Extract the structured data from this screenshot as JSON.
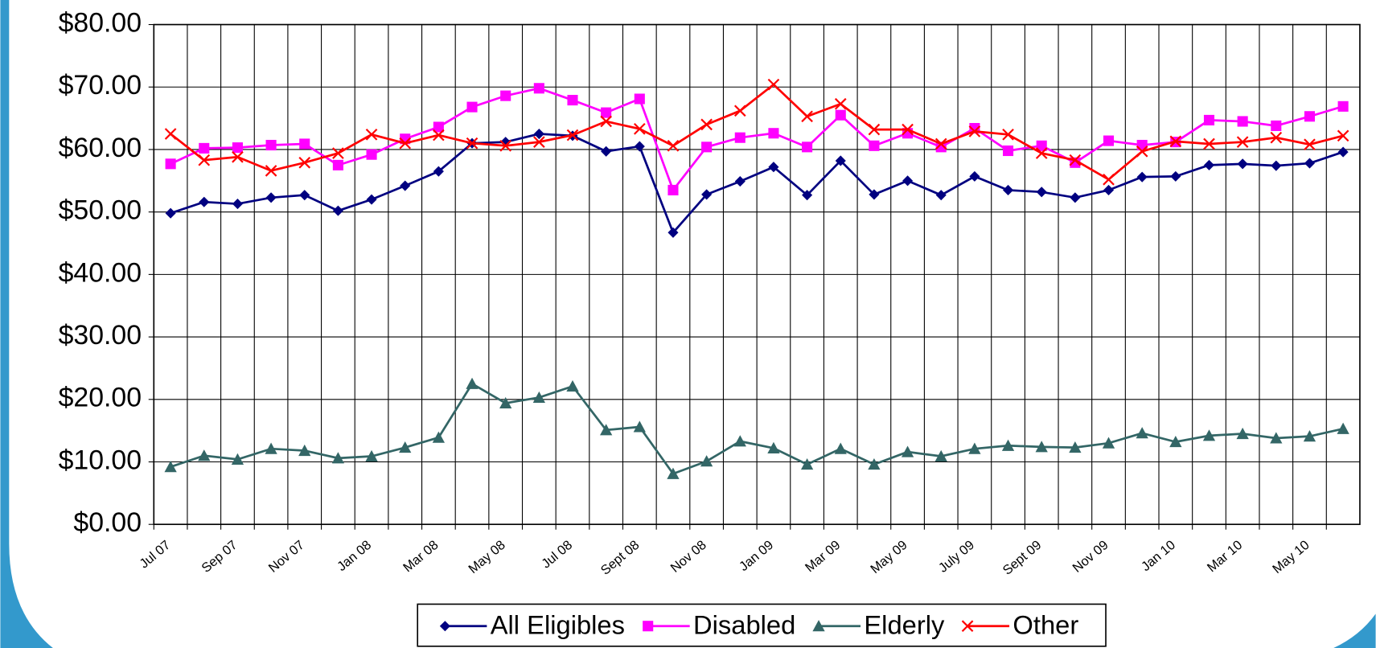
{
  "chart_data": {
    "type": "line",
    "categories": [
      "Jul 07",
      null,
      "Sep 07",
      null,
      "Nov 07",
      null,
      "Jan 08",
      null,
      "Mar 08",
      null,
      "May 08",
      null,
      "Jul 08",
      null,
      "Sept 08",
      null,
      "Nov 08",
      null,
      "Jan 09",
      null,
      "Mar 09",
      null,
      "May 09",
      null,
      "July 09",
      null,
      "Sept 09",
      null,
      "Nov 09",
      null,
      "Jan 10",
      null,
      "Mar 10",
      null,
      "May 10",
      null
    ],
    "series": [
      {
        "name": "All Eligibles",
        "color": "#000080",
        "marker": "diamond",
        "values": [
          49.8,
          51.6,
          51.3,
          52.3,
          52.7,
          50.2,
          52.0,
          54.2,
          56.5,
          61.0,
          61.2,
          62.5,
          62.2,
          59.7,
          60.5,
          46.7,
          52.8,
          54.9,
          57.2,
          52.7,
          58.2,
          52.8,
          55.0,
          52.7,
          55.7,
          53.5,
          53.2,
          52.3,
          53.5,
          55.6,
          55.7,
          57.5,
          57.7,
          57.4,
          57.8,
          59.6
        ]
      },
      {
        "name": "Disabled",
        "color": "#ff00ff",
        "marker": "square",
        "values": [
          57.7,
          60.2,
          60.3,
          60.7,
          60.9,
          57.5,
          59.2,
          61.7,
          63.6,
          66.8,
          68.6,
          69.8,
          67.9,
          65.9,
          68.1,
          53.5,
          60.4,
          61.9,
          62.6,
          60.4,
          65.5,
          60.6,
          62.6,
          60.4,
          63.4,
          59.8,
          60.6,
          57.9,
          61.4,
          60.7,
          61.2,
          64.7,
          64.5,
          63.8,
          65.3,
          66.9
        ]
      },
      {
        "name": "Elderly",
        "color": "#336666",
        "marker": "triangle",
        "values": [
          9.2,
          11.0,
          10.4,
          12.1,
          11.8,
          10.6,
          10.9,
          12.3,
          13.9,
          22.5,
          19.4,
          20.3,
          22.1,
          15.1,
          15.6,
          8.1,
          10.1,
          13.3,
          12.2,
          9.6,
          12.1,
          9.6,
          11.6,
          10.9,
          12.1,
          12.6,
          12.4,
          12.3,
          13.0,
          14.6,
          13.2,
          14.2,
          14.5,
          13.8,
          14.1,
          15.3
        ]
      },
      {
        "name": "Other",
        "color": "#ff0000",
        "marker": "x",
        "values": [
          62.5,
          58.3,
          58.8,
          56.6,
          57.9,
          59.4,
          62.4,
          61.0,
          62.3,
          61.0,
          60.6,
          61.2,
          62.3,
          64.5,
          63.3,
          60.6,
          64.0,
          66.2,
          70.4,
          65.3,
          67.3,
          63.2,
          63.2,
          60.9,
          62.9,
          62.4,
          59.4,
          58.3,
          55.2,
          59.7,
          61.3,
          60.9,
          61.2,
          61.9,
          60.8,
          62.2
        ]
      }
    ],
    "ylim": [
      0,
      80
    ],
    "yticks": [
      {
        "value": 0,
        "label": "$0.00"
      },
      {
        "value": 10,
        "label": "$10.00"
      },
      {
        "value": 20,
        "label": "$20.00"
      },
      {
        "value": 30,
        "label": "$30.00"
      },
      {
        "value": 40,
        "label": "$40.00"
      },
      {
        "value": 50,
        "label": "$50.00"
      },
      {
        "value": 60,
        "label": "$60.00"
      },
      {
        "value": 70,
        "label": "$70.00"
      },
      {
        "value": 80,
        "label": "$80.00"
      }
    ],
    "grid": true,
    "legend": "bottom"
  }
}
